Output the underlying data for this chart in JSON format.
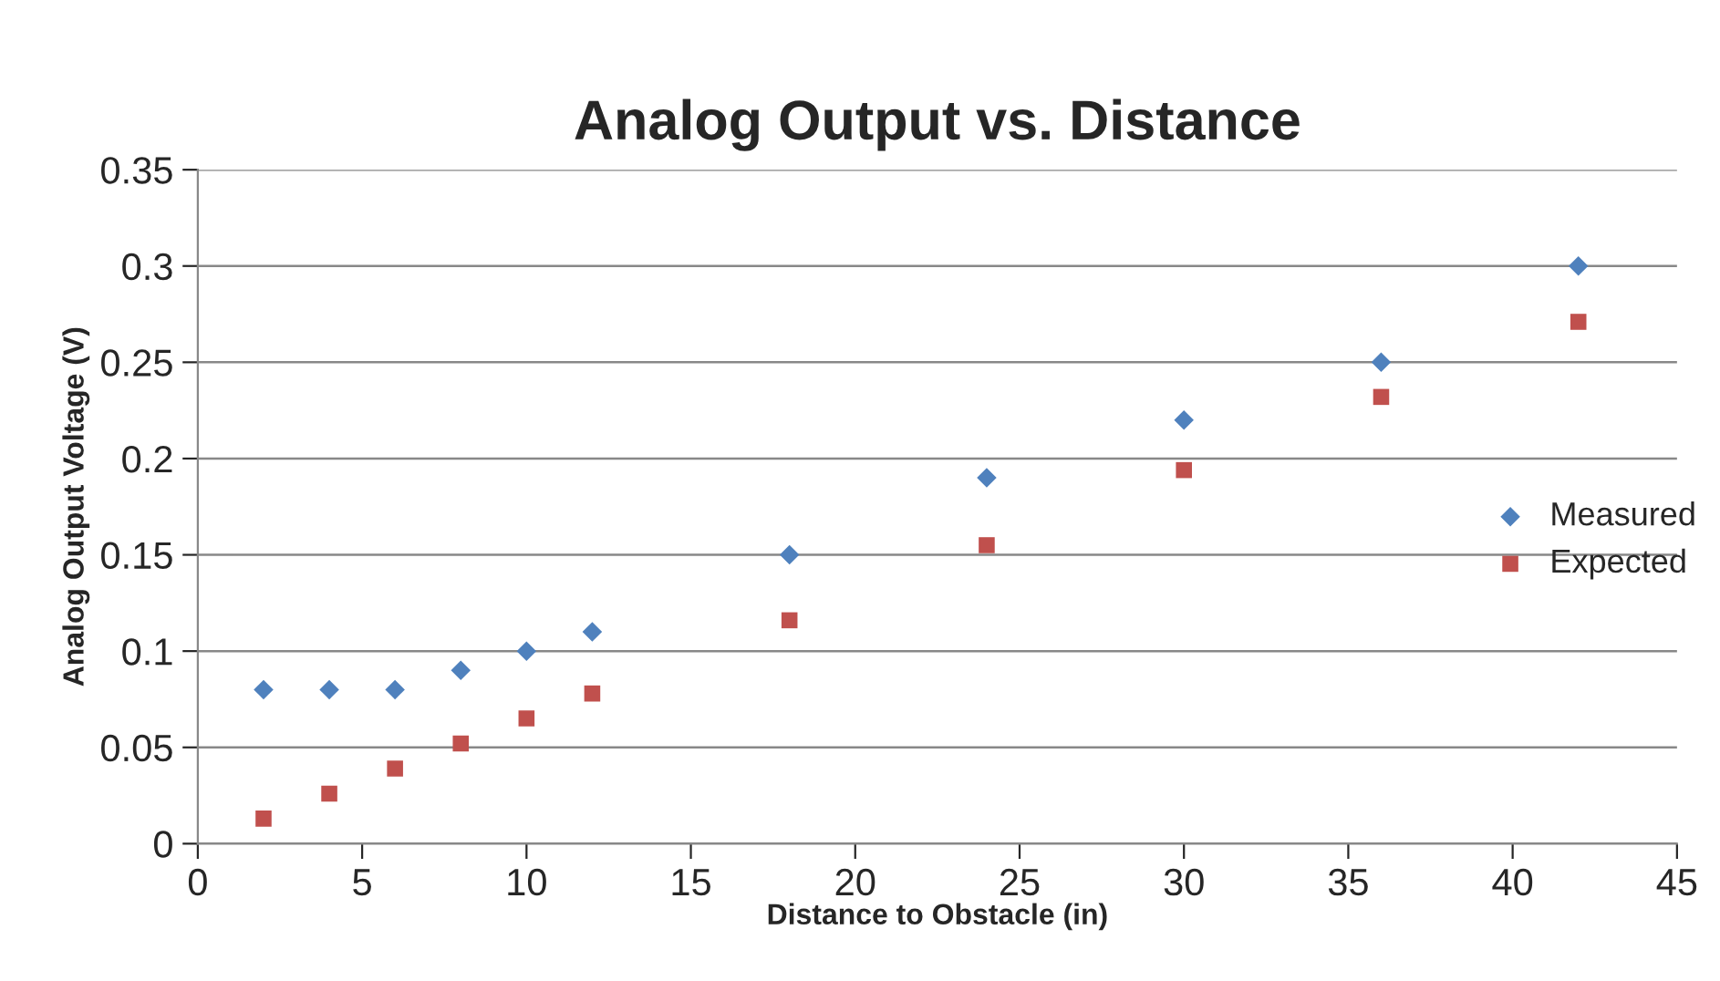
{
  "chart_data": {
    "type": "scatter",
    "title": "Analog Output vs. Distance",
    "xlabel": "Distance to Obstacle (in)",
    "ylabel": "Analog Output Voltage (V)",
    "series": [
      {
        "name": "Measured",
        "color": "#4f81bd",
        "marker": "diamond",
        "x": [
          2,
          4,
          6,
          8,
          10,
          12,
          18,
          24,
          30,
          36,
          42
        ],
        "values": [
          0.08,
          0.08,
          0.08,
          0.09,
          0.1,
          0.11,
          0.15,
          0.19,
          0.22,
          0.25,
          0.3
        ]
      },
      {
        "name": "Expected",
        "color": "#c0504d",
        "marker": "square",
        "x": [
          2,
          4,
          6,
          8,
          10,
          12,
          18,
          24,
          30,
          36,
          42
        ],
        "values": [
          0.013,
          0.026,
          0.039,
          0.052,
          0.065,
          0.078,
          0.116,
          0.155,
          0.194,
          0.232,
          0.271
        ]
      }
    ],
    "xlim": [
      0,
      45
    ],
    "xticks": [
      0,
      5,
      10,
      15,
      20,
      25,
      30,
      35,
      40,
      45
    ],
    "ylim": [
      0,
      0.35
    ],
    "yticks": [
      0,
      0.05,
      0.1,
      0.15,
      0.2,
      0.25,
      0.3,
      0.35
    ],
    "grid": "y",
    "legend": "right"
  }
}
